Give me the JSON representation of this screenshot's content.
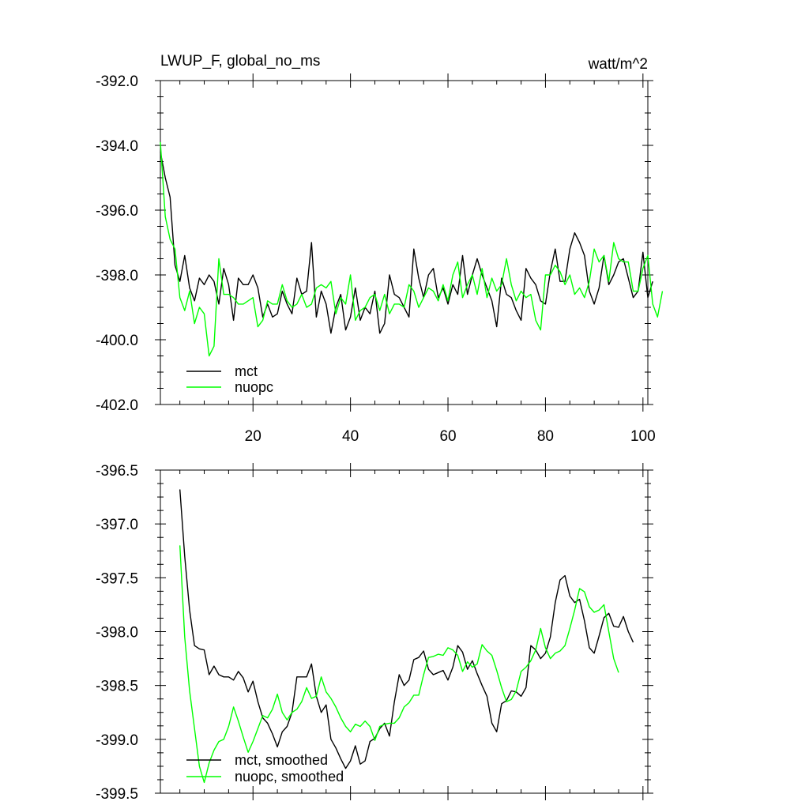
{
  "chart_data": [
    {
      "type": "line",
      "title": "LWUP_F, global_no_ms",
      "units": "watt/m^2",
      "xlim": [
        1,
        101
      ],
      "ylim": [
        -402.0,
        -392.0
      ],
      "yticks": [
        -392.0,
        -394.0,
        -396.0,
        -398.0,
        -400.0,
        -402.0
      ],
      "ytick_labels": [
        "-392.0",
        "-394.0",
        "-396.0",
        "-398.0",
        "-400.0",
        "-402.0"
      ],
      "xticks": [
        20,
        40,
        60,
        80,
        100
      ],
      "xtick_labels": [
        "20",
        "40",
        "60",
        "80",
        "100"
      ],
      "legend_position": "bottom-left",
      "grid": false,
      "series": [
        {
          "name": "mct",
          "color": "#000000",
          "x_start": 1,
          "values": [
            -394.2,
            -395.0,
            -395.6,
            -397.7,
            -398.2,
            -397.4,
            -398.4,
            -398.8,
            -398.1,
            -398.3,
            -398.0,
            -398.2,
            -398.9,
            -397.8,
            -398.3,
            -399.4,
            -398.1,
            -398.3,
            -398.3,
            -398.0,
            -398.4,
            -399.3,
            -398.9,
            -399.3,
            -399.2,
            -398.5,
            -398.9,
            -399.2,
            -398.1,
            -398.6,
            -398.5,
            -397.0,
            -399.3,
            -398.5,
            -398.9,
            -399.8,
            -399.0,
            -398.6,
            -399.7,
            -399.3,
            -398.4,
            -399.4,
            -399.0,
            -399.2,
            -398.5,
            -399.8,
            -399.5,
            -398.0,
            -398.6,
            -398.7,
            -399.0,
            -399.3,
            -397.2,
            -398.1,
            -398.7,
            -398.0,
            -397.8,
            -398.7,
            -398.4,
            -398.9,
            -398.3,
            -398.6,
            -397.4,
            -398.6,
            -398.0,
            -397.5,
            -398.0,
            -398.4,
            -398.8,
            -399.6,
            -398.1,
            -398.6,
            -398.7,
            -399.1,
            -399.4,
            -397.8,
            -398.1,
            -398.3,
            -398.8,
            -398.9,
            -397.9,
            -397.2,
            -398.2,
            -398.2,
            -397.2,
            -396.7,
            -397.0,
            -397.4,
            -398.5,
            -398.9,
            -398.4,
            -397.4,
            -398.3,
            -398.0,
            -397.6,
            -397.5,
            -398.1,
            -398.7,
            -398.5,
            -397.3,
            -398.7,
            -398.2
          ]
        },
        {
          "name": "nuopc",
          "color": "#00ff00",
          "x_start": 1,
          "values": [
            -393.9,
            -396.2,
            -396.9,
            -397.2,
            -398.7,
            -399.1,
            -398.5,
            -399.5,
            -399.0,
            -399.2,
            -400.5,
            -400.2,
            -397.5,
            -398.6,
            -398.6,
            -398.7,
            -398.9,
            -398.9,
            -398.8,
            -398.7,
            -399.6,
            -399.4,
            -398.8,
            -398.9,
            -398.9,
            -398.3,
            -398.8,
            -399.0,
            -398.9,
            -398.6,
            -399.0,
            -398.9,
            -398.4,
            -398.3,
            -398.4,
            -398.2,
            -399.2,
            -398.7,
            -398.9,
            -398.0,
            -399.4,
            -399.1,
            -399.0,
            -398.7,
            -398.6,
            -399.1,
            -398.6,
            -399.2,
            -398.9,
            -398.9,
            -399.0,
            -398.3,
            -398.5,
            -399.0,
            -398.7,
            -398.4,
            -398.5,
            -398.8,
            -398.3,
            -398.8,
            -398.0,
            -397.6,
            -398.7,
            -398.3,
            -398.0,
            -398.6,
            -397.8,
            -398.7,
            -398.1,
            -398.5,
            -398.3,
            -397.5,
            -398.3,
            -398.8,
            -398.5,
            -398.7,
            -398.6,
            -399.4,
            -399.7,
            -398.0,
            -398.0,
            -397.7,
            -397.9,
            -398.3,
            -398.0,
            -398.6,
            -398.4,
            -398.7,
            -398.2,
            -397.2,
            -397.6,
            -397.4,
            -398.2,
            -397.0,
            -397.5,
            -397.6,
            -397.6,
            -398.5,
            -398.5,
            -397.8,
            -397.4,
            -398.9,
            -399.3,
            -398.5
          ]
        }
      ]
    },
    {
      "type": "line",
      "xlim": [
        1,
        101
      ],
      "ylim": [
        -399.5,
        -396.5
      ],
      "yticks": [
        -396.5,
        -397.0,
        -397.5,
        -398.0,
        -398.5,
        -399.0,
        -399.5
      ],
      "ytick_labels": [
        "-396.5",
        "-397.0",
        "-397.5",
        "-398.0",
        "-398.5",
        "-399.0",
        "-399.5"
      ],
      "xticks": [
        20,
        40,
        60,
        80,
        100
      ],
      "legend_position": "bottom-left",
      "grid": false,
      "series": [
        {
          "name": "mct, smoothed",
          "color": "#000000",
          "x_start": 5,
          "values": [
            -396.68,
            -397.3,
            -397.8,
            -398.13,
            -398.16,
            -398.17,
            -398.4,
            -398.32,
            -398.4,
            -398.42,
            -398.42,
            -398.45,
            -398.37,
            -398.43,
            -398.56,
            -398.46,
            -398.65,
            -398.8,
            -398.85,
            -398.95,
            -399.07,
            -398.93,
            -398.88,
            -398.75,
            -398.42,
            -398.42,
            -398.42,
            -398.3,
            -398.6,
            -398.75,
            -398.68,
            -399.0,
            -399.08,
            -399.18,
            -399.27,
            -399.2,
            -399.06,
            -399.23,
            -399.2,
            -399.02,
            -398.99,
            -398.9,
            -398.85,
            -398.97,
            -398.65,
            -398.4,
            -398.5,
            -398.45,
            -398.26,
            -398.24,
            -398.18,
            -398.35,
            -398.4,
            -398.38,
            -398.36,
            -398.45,
            -398.33,
            -398.13,
            -398.19,
            -398.35,
            -398.27,
            -398.39,
            -398.5,
            -398.6,
            -398.85,
            -398.93,
            -398.67,
            -398.64,
            -398.55,
            -398.56,
            -398.6,
            -398.52,
            -398.13,
            -398.17,
            -398.25,
            -398.2,
            -398.05,
            -397.73,
            -397.52,
            -397.48,
            -397.67,
            -397.73,
            -397.7,
            -397.9,
            -398.15,
            -398.2,
            -398.04,
            -397.87,
            -397.83,
            -397.95,
            -397.96,
            -397.86,
            -398.0,
            -398.1
          ]
        },
        {
          "name": "nuopc, smoothed",
          "color": "#00ff00",
          "x_start": 5,
          "values": [
            -397.2,
            -398.05,
            -398.55,
            -398.9,
            -399.25,
            -399.4,
            -399.22,
            -399.1,
            -399.02,
            -399.0,
            -398.88,
            -398.7,
            -398.83,
            -398.98,
            -399.12,
            -399.02,
            -398.9,
            -398.78,
            -398.8,
            -398.72,
            -398.58,
            -398.75,
            -398.82,
            -398.75,
            -398.72,
            -398.65,
            -398.52,
            -398.62,
            -398.6,
            -398.42,
            -398.56,
            -398.62,
            -398.7,
            -398.8,
            -398.88,
            -398.93,
            -398.86,
            -398.88,
            -398.83,
            -398.88,
            -399.01,
            -398.88,
            -398.86,
            -398.85,
            -398.85,
            -398.8,
            -398.7,
            -398.66,
            -398.59,
            -398.59,
            -398.4,
            -398.24,
            -398.23,
            -398.21,
            -398.22,
            -398.15,
            -398.17,
            -398.22,
            -398.37,
            -398.28,
            -398.33,
            -398.3,
            -398.12,
            -398.18,
            -398.22,
            -398.36,
            -398.52,
            -398.65,
            -398.63,
            -398.55,
            -398.37,
            -398.33,
            -398.27,
            -398.17,
            -397.97,
            -398.15,
            -398.25,
            -398.2,
            -398.18,
            -398.13,
            -397.97,
            -397.8,
            -397.6,
            -397.63,
            -397.77,
            -397.82,
            -397.8,
            -397.75,
            -398.0,
            -398.25,
            -398.38
          ]
        }
      ]
    }
  ]
}
